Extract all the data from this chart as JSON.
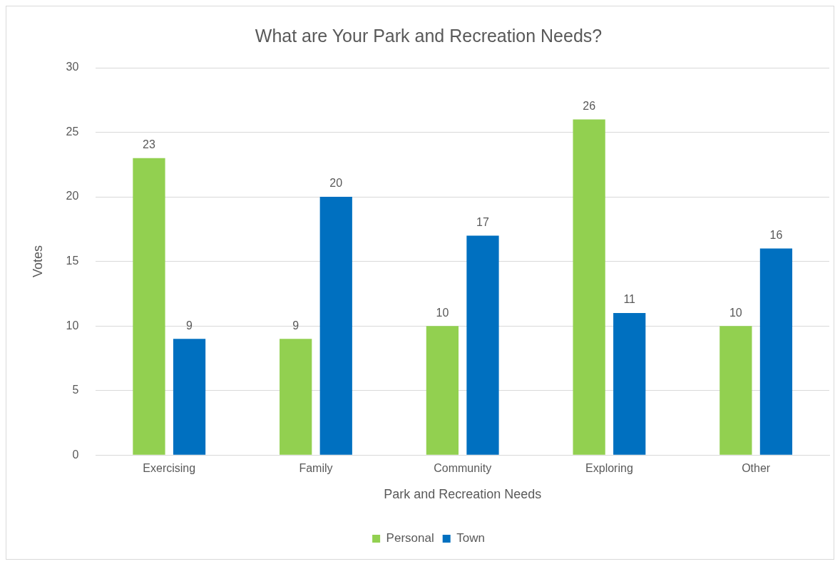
{
  "chart_data": {
    "type": "bar",
    "title": "What are Your Park and Recreation Needs?",
    "xlabel": "Park and Recreation Needs",
    "ylabel": "Votes",
    "categories": [
      "Exercising",
      "Family",
      "Community",
      "Exploring",
      "Other"
    ],
    "series": [
      {
        "name": "Personal",
        "color": "#92d050",
        "values": [
          23,
          9,
          10,
          26,
          10
        ]
      },
      {
        "name": "Town",
        "color": "#0070c0",
        "values": [
          9,
          20,
          17,
          11,
          16
        ]
      }
    ],
    "ylim": [
      0,
      30
    ],
    "yticks": [
      0,
      5,
      10,
      15,
      20,
      25,
      30
    ],
    "grid": "y",
    "legend": "bottom",
    "data_labels": true
  }
}
